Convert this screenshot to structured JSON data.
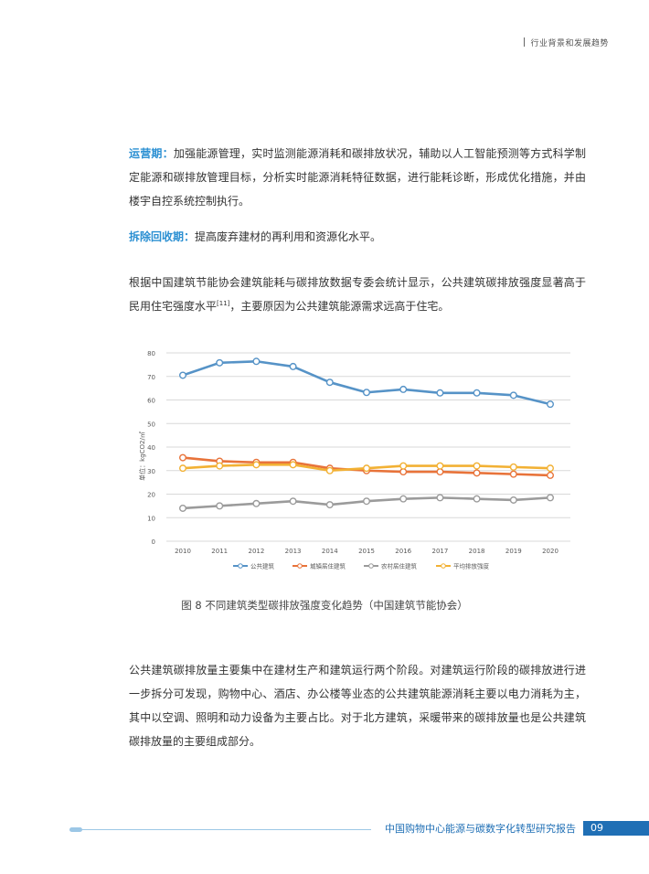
{
  "header": {
    "section": "行业背景和发展趋势"
  },
  "paragraphs": {
    "p1": {
      "keyword": "运营期：",
      "text": "加强能源管理，实时监测能源消耗和碳排放状况，辅助以人工智能预测等方式科学制定能源和碳排放管理目标，分析实时能源消耗特征数据，进行能耗诊断，形成优化措施，并由楼宇自控系统控制执行。"
    },
    "p2": {
      "keyword": "拆除回收期：",
      "text": "提高废弃建材的再利用和资源化水平。"
    },
    "p3": {
      "text_a": "根据中国建筑节能协会建筑能耗与碳排放数据专委会统计显示，公共建筑碳排放强度显著高于民用住宅强度水平",
      "ref": "[11]",
      "text_b": "，主要原因为公共建筑能源需求远高于住宅。"
    },
    "p4": {
      "text": "公共建筑碳排放量主要集中在建材生产和建筑运行两个阶段。对建筑运行阶段的碳排放进行进一步拆分可发现，购物中心、酒店、办公楼等业态的公共建筑能源消耗主要以电力消耗为主，其中以空调、照明和动力设备为主要占比。对于北方建筑，采暖带来的碳排放量也是公共建筑碳排放量的主要组成部分。"
    }
  },
  "caption": "图 8  不同建筑类型碳排放强度变化趋势（中国建筑节能协会）",
  "footer": {
    "title": "中国购物中心能源与碳数字化转型研究报告",
    "page": "09"
  },
  "chart_data": {
    "type": "line",
    "x": [
      "2010",
      "2011",
      "2012",
      "2013",
      "2014",
      "2015",
      "2016",
      "2017",
      "2018",
      "2019",
      "2020"
    ],
    "ylabel": "单位：kgCO2/㎡",
    "ylim": [
      0,
      80
    ],
    "yticks": [
      0,
      10,
      20,
      30,
      40,
      50,
      60,
      70,
      80
    ],
    "grid": true,
    "legend_position": "bottom",
    "series": [
      {
        "name": "公共建筑",
        "color": "#5693c7",
        "values": [
          70.5,
          75.8,
          76.4,
          74.2,
          67.5,
          63.2,
          64.5,
          63.0,
          63.0,
          62.0,
          58.2
        ]
      },
      {
        "name": "城镇居住建筑",
        "color": "#e8733a",
        "values": [
          35.5,
          34.0,
          33.5,
          33.5,
          31.0,
          30.0,
          29.5,
          29.5,
          29.0,
          28.5,
          28.0
        ]
      },
      {
        "name": "农村居住建筑",
        "color": "#9b9b9b",
        "values": [
          14.0,
          15.0,
          16.0,
          17.0,
          15.5,
          17.0,
          18.0,
          18.5,
          18.0,
          17.5,
          18.5
        ]
      },
      {
        "name": "平均排放强度",
        "color": "#f2b134",
        "values": [
          31.0,
          32.0,
          32.5,
          32.5,
          30.0,
          31.0,
          32.0,
          32.0,
          32.0,
          31.5,
          31.0
        ]
      }
    ]
  }
}
